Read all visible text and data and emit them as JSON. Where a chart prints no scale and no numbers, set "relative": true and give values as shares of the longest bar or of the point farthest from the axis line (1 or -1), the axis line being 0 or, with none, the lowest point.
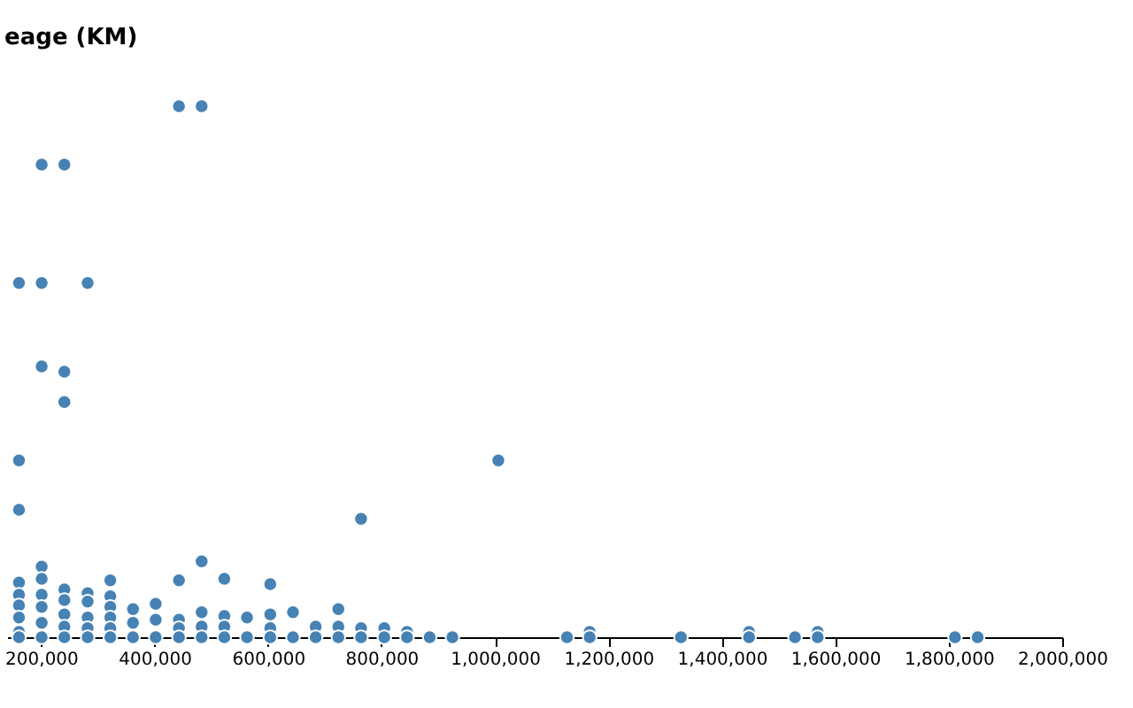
{
  "chart_data": {
    "type": "scatter",
    "title": "eage (KM)",
    "relative": true,
    "color": "#4682b4",
    "marker": "circle",
    "xlim": [
      140000,
      2000000
    ],
    "xticks": [
      {
        "value": 200000,
        "label": "200,000"
      },
      {
        "value": 400000,
        "label": "400,000"
      },
      {
        "value": 600000,
        "label": "600,000"
      },
      {
        "value": 800000,
        "label": "800,000"
      },
      {
        "value": 1000000,
        "label": "1,000,000"
      },
      {
        "value": 1200000,
        "label": "1,200,000"
      },
      {
        "value": 1400000,
        "label": "1,400,000"
      },
      {
        "value": 1600000,
        "label": "1,600,000"
      },
      {
        "value": 1800000,
        "label": "1,800,000"
      },
      {
        "value": 2000000,
        "label": "2,000,000"
      }
    ],
    "x": [
      443000,
      483000,
      201000,
      241000,
      161000,
      201000,
      282000,
      201000,
      241000,
      241000,
      161000,
      161000,
      1006000,
      764000,
      161000,
      161000,
      161000,
      161000,
      161000,
      161000,
      201000,
      201000,
      201000,
      201000,
      201000,
      201000,
      241000,
      241000,
      241000,
      241000,
      241000,
      282000,
      282000,
      282000,
      282000,
      282000,
      322000,
      322000,
      322000,
      322000,
      322000,
      322000,
      362000,
      362000,
      362000,
      402000,
      402000,
      402000,
      443000,
      443000,
      443000,
      443000,
      483000,
      483000,
      483000,
      483000,
      523000,
      523000,
      523000,
      523000,
      563000,
      563000,
      604000,
      604000,
      604000,
      604000,
      644000,
      644000,
      684000,
      684000,
      724000,
      724000,
      724000,
      764000,
      764000,
      805000,
      805000,
      845000,
      845000,
      885000,
      925000,
      1127000,
      1167000,
      1167000,
      1328000,
      1448000,
      1448000,
      1529000,
      1569000,
      1569000,
      1811000,
      1851000
    ],
    "values": [
      1,
      1,
      0.89,
      0.89,
      0.667,
      0.667,
      0.667,
      0.51,
      0.5,
      0.443,
      0.333,
      0.24,
      0.333,
      0.223,
      0.103,
      0.08,
      0.06,
      0.037,
      0.01,
      0,
      0.133,
      0.11,
      0.08,
      0.057,
      0.027,
      0,
      0.09,
      0.07,
      0.043,
      0.02,
      0,
      0.083,
      0.067,
      0.037,
      0.017,
      0,
      0.107,
      0.077,
      0.057,
      0.037,
      0.017,
      0,
      0.053,
      0.027,
      0,
      0.063,
      0.033,
      0,
      0.107,
      0.033,
      0.017,
      0,
      0.143,
      0.047,
      0.02,
      0,
      0.11,
      0.04,
      0.02,
      0,
      0.037,
      0,
      0.1,
      0.043,
      0.017,
      0,
      0.047,
      0,
      0.02,
      0,
      0.053,
      0.02,
      0,
      0.017,
      0,
      0.017,
      0,
      0.01,
      0,
      0,
      0,
      0,
      0.01,
      0,
      0,
      0.01,
      0,
      0,
      0.01,
      0,
      0,
      0
    ]
  }
}
